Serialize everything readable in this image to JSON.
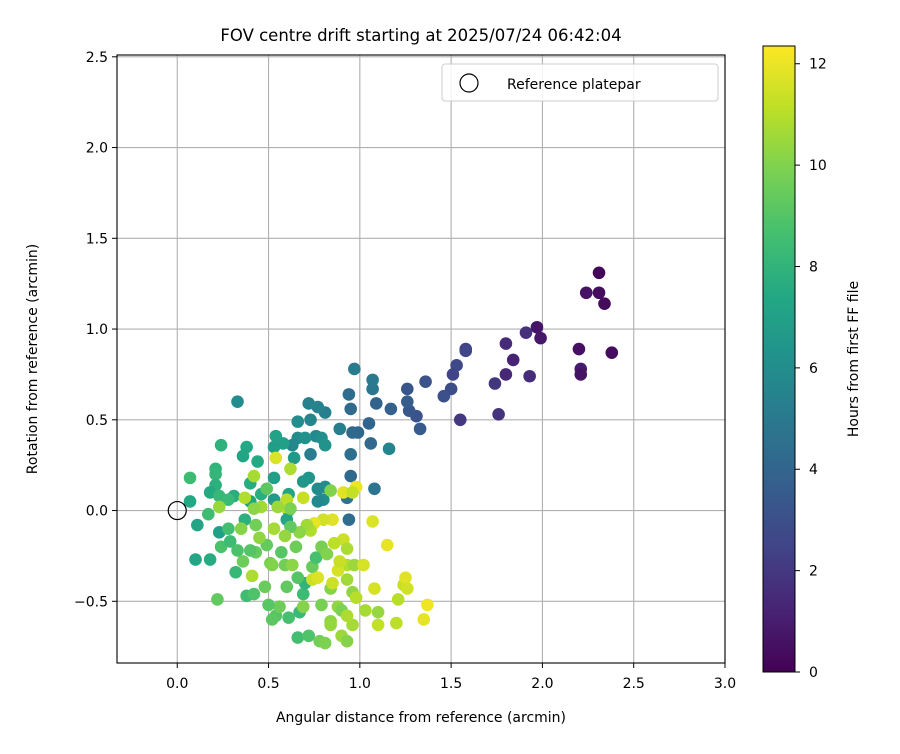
{
  "chart_data": {
    "type": "scatter",
    "title": "FOV centre drift starting at 2025/07/24 06:42:04",
    "xlabel": "Angular distance from reference (arcmin)",
    "ylabel": "Rotation from reference (arcmin)",
    "xlim": [
      -0.33,
      3.0
    ],
    "ylim": [
      -0.84,
      2.51
    ],
    "xticks": [
      0.0,
      0.5,
      1.0,
      1.5,
      2.0,
      2.5,
      3.0
    ],
    "xtick_labels": [
      "0.0",
      "0.5",
      "1.0",
      "1.5",
      "2.0",
      "2.5",
      "3.0"
    ],
    "yticks": [
      -0.5,
      0.0,
      0.5,
      1.0,
      1.5,
      2.0,
      2.5
    ],
    "ytick_labels": [
      "−0.5",
      "0.0",
      "0.5",
      "1.0",
      "1.5",
      "2.0",
      "2.5"
    ],
    "grid": true,
    "legend": {
      "placement": "top-right",
      "entries": [
        "Reference platepar"
      ]
    },
    "reference_point": {
      "x": 0.0,
      "y": 0.0
    },
    "colorbar": {
      "label": "Hours from first FF file",
      "colormap": "viridis",
      "range": [
        0,
        12.35
      ],
      "ticks": [
        0,
        2,
        4,
        6,
        8,
        10,
        12
      ],
      "tick_labels": [
        "0",
        "2",
        "4",
        "6",
        "8",
        "10",
        "12"
      ]
    },
    "points": [
      {
        "x": 2.31,
        "y": 1.31,
        "c": 0.2
      },
      {
        "x": 2.24,
        "y": 1.2,
        "c": 0.6
      },
      {
        "x": 2.31,
        "y": 1.2,
        "c": 0.4
      },
      {
        "x": 2.34,
        "y": 1.14,
        "c": 0.3
      },
      {
        "x": 1.97,
        "y": 1.01,
        "c": 0.7
      },
      {
        "x": 1.99,
        "y": 0.95,
        "c": 0.8
      },
      {
        "x": 2.2,
        "y": 0.89,
        "c": 0.5
      },
      {
        "x": 2.38,
        "y": 0.87,
        "c": 0.4
      },
      {
        "x": 2.21,
        "y": 0.78,
        "c": 0.9
      },
      {
        "x": 2.21,
        "y": 0.75,
        "c": 0.6
      },
      {
        "x": 1.84,
        "y": 0.83,
        "c": 1.2
      },
      {
        "x": 1.8,
        "y": 0.92,
        "c": 1.5
      },
      {
        "x": 1.91,
        "y": 0.98,
        "c": 1.7
      },
      {
        "x": 1.74,
        "y": 0.7,
        "c": 1.9
      },
      {
        "x": 1.8,
        "y": 0.75,
        "c": 1.4
      },
      {
        "x": 1.93,
        "y": 0.74,
        "c": 1.6
      },
      {
        "x": 1.76,
        "y": 0.53,
        "c": 1.8
      },
      {
        "x": 1.55,
        "y": 0.5,
        "c": 2.0
      },
      {
        "x": 1.58,
        "y": 0.89,
        "c": 2.3
      },
      {
        "x": 1.58,
        "y": 0.88,
        "c": 2.6
      },
      {
        "x": 1.53,
        "y": 0.8,
        "c": 2.7
      },
      {
        "x": 1.51,
        "y": 0.75,
        "c": 2.5
      },
      {
        "x": 1.5,
        "y": 0.67,
        "c": 2.9
      },
      {
        "x": 1.46,
        "y": 0.63,
        "c": 3.0
      },
      {
        "x": 1.36,
        "y": 0.71,
        "c": 3.1
      },
      {
        "x": 1.26,
        "y": 0.67,
        "c": 3.3
      },
      {
        "x": 1.31,
        "y": 0.52,
        "c": 3.2
      },
      {
        "x": 1.27,
        "y": 0.55,
        "c": 3.4
      },
      {
        "x": 1.33,
        "y": 0.45,
        "c": 3.5
      },
      {
        "x": 1.26,
        "y": 0.6,
        "c": 3.6
      },
      {
        "x": 1.17,
        "y": 0.56,
        "c": 3.8
      },
      {
        "x": 1.09,
        "y": 0.59,
        "c": 3.9
      },
      {
        "x": 1.05,
        "y": 0.48,
        "c": 4.0
      },
      {
        "x": 0.99,
        "y": 0.43,
        "c": 4.1
      },
      {
        "x": 0.96,
        "y": 0.43,
        "c": 4.2
      },
      {
        "x": 0.95,
        "y": 0.56,
        "c": 4.3
      },
      {
        "x": 0.94,
        "y": 0.64,
        "c": 4.4
      },
      {
        "x": 1.06,
        "y": 0.37,
        "c": 4.3
      },
      {
        "x": 0.95,
        "y": 0.31,
        "c": 4.5
      },
      {
        "x": 0.95,
        "y": 0.19,
        "c": 4.2
      },
      {
        "x": 0.93,
        "y": 0.07,
        "c": 4.7
      },
      {
        "x": 0.94,
        "y": -0.05,
        "c": 4.4
      },
      {
        "x": 1.08,
        "y": 0.12,
        "c": 4.8
      },
      {
        "x": 1.07,
        "y": 0.67,
        "c": 4.9
      },
      {
        "x": 1.07,
        "y": 0.72,
        "c": 5.0
      },
      {
        "x": 0.97,
        "y": 0.78,
        "c": 5.1
      },
      {
        "x": 0.89,
        "y": 0.45,
        "c": 5.3
      },
      {
        "x": 1.16,
        "y": 0.34,
        "c": 5.6
      },
      {
        "x": 0.81,
        "y": 0.54,
        "c": 5.3
      },
      {
        "x": 0.72,
        "y": 0.59,
        "c": 5.4
      },
      {
        "x": 0.77,
        "y": 0.57,
        "c": 5.5
      },
      {
        "x": 0.73,
        "y": 0.5,
        "c": 5.6
      },
      {
        "x": 0.66,
        "y": 0.49,
        "c": 6.0
      },
      {
        "x": 0.66,
        "y": 0.4,
        "c": 5.9
      },
      {
        "x": 0.63,
        "y": 0.36,
        "c": 5.7
      },
      {
        "x": 0.76,
        "y": 0.41,
        "c": 5.8
      },
      {
        "x": 0.79,
        "y": 0.4,
        "c": 6.1
      },
      {
        "x": 0.81,
        "y": 0.36,
        "c": 6.3
      },
      {
        "x": 0.81,
        "y": 0.13,
        "c": 6.0
      },
      {
        "x": 0.77,
        "y": 0.12,
        "c": 5.9
      },
      {
        "x": 0.8,
        "y": 0.06,
        "c": 6.0
      },
      {
        "x": 0.77,
        "y": 0.05,
        "c": 5.8
      },
      {
        "x": 0.73,
        "y": 0.31,
        "c": 5.2
      },
      {
        "x": 0.72,
        "y": 0.18,
        "c": 6.4
      },
      {
        "x": 0.69,
        "y": 0.16,
        "c": 6.5
      },
      {
        "x": 0.64,
        "y": 0.29,
        "c": 6.6
      },
      {
        "x": 0.7,
        "y": 0.4,
        "c": 6.2
      },
      {
        "x": 0.58,
        "y": 0.37,
        "c": 7.0
      },
      {
        "x": 0.54,
        "y": 0.41,
        "c": 7.1
      },
      {
        "x": 0.53,
        "y": 0.35,
        "c": 6.8
      },
      {
        "x": 0.53,
        "y": 0.18,
        "c": 6.9
      },
      {
        "x": 0.53,
        "y": 0.06,
        "c": 6.7
      },
      {
        "x": 0.61,
        "y": 0.09,
        "c": 7.2
      },
      {
        "x": 0.61,
        "y": 0.0,
        "c": 7.3
      },
      {
        "x": 0.6,
        "y": -0.05,
        "c": 7.2
      },
      {
        "x": 0.38,
        "y": 0.35,
        "c": 7.4
      },
      {
        "x": 0.33,
        "y": 0.6,
        "c": 6.0
      },
      {
        "x": 0.36,
        "y": 0.3,
        "c": 7.2
      },
      {
        "x": 0.44,
        "y": 0.27,
        "c": 7.5
      },
      {
        "x": 0.4,
        "y": 0.15,
        "c": 7.6
      },
      {
        "x": 0.46,
        "y": 0.09,
        "c": 7.7
      },
      {
        "x": 0.4,
        "y": 0.05,
        "c": 7.1
      },
      {
        "x": 0.37,
        "y": -0.05,
        "c": 7.8
      },
      {
        "x": 0.31,
        "y": 0.08,
        "c": 7.7
      },
      {
        "x": 0.24,
        "y": 0.36,
        "c": 7.9
      },
      {
        "x": 0.21,
        "y": 0.23,
        "c": 8.0
      },
      {
        "x": 0.21,
        "y": 0.2,
        "c": 8.1
      },
      {
        "x": 0.21,
        "y": 0.14,
        "c": 7.8
      },
      {
        "x": 0.18,
        "y": 0.1,
        "c": 7.5
      },
      {
        "x": 0.23,
        "y": 0.08,
        "c": 8.2
      },
      {
        "x": 0.28,
        "y": 0.06,
        "c": 8.3
      },
      {
        "x": 0.07,
        "y": 0.18,
        "c": 8.4
      },
      {
        "x": 0.07,
        "y": 0.05,
        "c": 7.4
      },
      {
        "x": 0.11,
        "y": -0.08,
        "c": 7.2
      },
      {
        "x": 0.17,
        "y": -0.02,
        "c": 8.5
      },
      {
        "x": 0.23,
        "y": -0.12,
        "c": 7.0
      },
      {
        "x": 0.1,
        "y": -0.27,
        "c": 7.3
      },
      {
        "x": 0.18,
        "y": -0.27,
        "c": 7.6
      },
      {
        "x": 0.28,
        "y": -0.1,
        "c": 8.6
      },
      {
        "x": 0.24,
        "y": -0.2,
        "c": 8.8
      },
      {
        "x": 0.29,
        "y": -0.17,
        "c": 8.4
      },
      {
        "x": 0.32,
        "y": -0.34,
        "c": 8.2
      },
      {
        "x": 0.38,
        "y": -0.47,
        "c": 8.5
      },
      {
        "x": 0.22,
        "y": -0.49,
        "c": 9.3
      },
      {
        "x": 0.42,
        "y": -0.46,
        "c": 8.9
      },
      {
        "x": 0.43,
        "y": -0.23,
        "c": 9.4
      },
      {
        "x": 0.48,
        "y": -0.42,
        "c": 9.5
      },
      {
        "x": 0.51,
        "y": -0.29,
        "c": 9.8
      },
      {
        "x": 0.54,
        "y": -0.58,
        "c": 9.0
      },
      {
        "x": 0.52,
        "y": -0.6,
        "c": 9.2
      },
      {
        "x": 0.56,
        "y": -0.53,
        "c": 9.6
      },
      {
        "x": 0.61,
        "y": -0.59,
        "c": 8.7
      },
      {
        "x": 0.66,
        "y": -0.7,
        "c": 8.6
      },
      {
        "x": 0.72,
        "y": -0.69,
        "c": 8.9
      },
      {
        "x": 0.78,
        "y": -0.72,
        "c": 9.7
      },
      {
        "x": 0.81,
        "y": -0.73,
        "c": 9.9
      },
      {
        "x": 0.67,
        "y": -0.56,
        "c": 8.3
      },
      {
        "x": 0.69,
        "y": -0.46,
        "c": 8.4
      },
      {
        "x": 0.7,
        "y": -0.4,
        "c": 8.0
      },
      {
        "x": 0.66,
        "y": -0.37,
        "c": 9.0
      },
      {
        "x": 0.74,
        "y": -0.31,
        "c": 9.5
      },
      {
        "x": 0.76,
        "y": -0.26,
        "c": 8.7
      },
      {
        "x": 0.79,
        "y": -0.2,
        "c": 9.8
      },
      {
        "x": 0.82,
        "y": -0.24,
        "c": 10.0
      },
      {
        "x": 0.84,
        "y": -0.43,
        "c": 10.1
      },
      {
        "x": 0.88,
        "y": -0.53,
        "c": 10.3
      },
      {
        "x": 0.9,
        "y": -0.55,
        "c": 9.9
      },
      {
        "x": 0.84,
        "y": -0.61,
        "c": 10.2
      },
      {
        "x": 0.84,
        "y": -0.63,
        "c": 10.4
      },
      {
        "x": 0.9,
        "y": -0.69,
        "c": 10.5
      },
      {
        "x": 0.93,
        "y": -0.72,
        "c": 10.1
      },
      {
        "x": 0.96,
        "y": -0.63,
        "c": 10.7
      },
      {
        "x": 0.93,
        "y": -0.58,
        "c": 10.8
      },
      {
        "x": 0.96,
        "y": -0.45,
        "c": 10.3
      },
      {
        "x": 0.93,
        "y": -0.38,
        "c": 10.6
      },
      {
        "x": 0.93,
        "y": -0.3,
        "c": 10.9
      },
      {
        "x": 0.97,
        "y": -0.3,
        "c": 10.5
      },
      {
        "x": 0.98,
        "y": -0.48,
        "c": 11.0
      },
      {
        "x": 1.03,
        "y": -0.55,
        "c": 10.7
      },
      {
        "x": 1.1,
        "y": -0.56,
        "c": 10.4
      },
      {
        "x": 1.1,
        "y": -0.63,
        "c": 11.2
      },
      {
        "x": 1.2,
        "y": -0.62,
        "c": 11.1
      },
      {
        "x": 1.21,
        "y": -0.49,
        "c": 11.0
      },
      {
        "x": 1.24,
        "y": -0.41,
        "c": 11.3
      },
      {
        "x": 1.25,
        "y": -0.37,
        "c": 11.8
      },
      {
        "x": 1.26,
        "y": -0.43,
        "c": 11.5
      },
      {
        "x": 1.35,
        "y": -0.6,
        "c": 11.9
      },
      {
        "x": 1.37,
        "y": -0.52,
        "c": 12.1
      },
      {
        "x": 1.08,
        "y": -0.43,
        "c": 11.6
      },
      {
        "x": 1.15,
        "y": -0.19,
        "c": 11.9
      },
      {
        "x": 1.07,
        "y": -0.06,
        "c": 11.7
      },
      {
        "x": 0.98,
        "y": 0.13,
        "c": 12.0
      },
      {
        "x": 0.91,
        "y": 0.1,
        "c": 11.8
      },
      {
        "x": 0.96,
        "y": 0.1,
        "c": 11.2
      },
      {
        "x": 0.91,
        "y": -0.16,
        "c": 11.4
      },
      {
        "x": 0.93,
        "y": -0.21,
        "c": 10.8
      },
      {
        "x": 0.86,
        "y": -0.18,
        "c": 11.1
      },
      {
        "x": 0.88,
        "y": -0.33,
        "c": 11.6
      },
      {
        "x": 0.89,
        "y": -0.28,
        "c": 11.3
      },
      {
        "x": 0.85,
        "y": -0.05,
        "c": 11.8
      },
      {
        "x": 0.8,
        "y": -0.05,
        "c": 11.5
      },
      {
        "x": 0.75,
        "y": -0.07,
        "c": 11.9
      },
      {
        "x": 0.74,
        "y": -0.38,
        "c": 11.4
      },
      {
        "x": 0.77,
        "y": -0.37,
        "c": 11.7
      },
      {
        "x": 0.73,
        "y": -0.11,
        "c": 10.9
      },
      {
        "x": 0.71,
        "y": -0.08,
        "c": 10.6
      },
      {
        "x": 0.67,
        "y": -0.12,
        "c": 10.2
      },
      {
        "x": 0.65,
        "y": -0.2,
        "c": 9.6
      },
      {
        "x": 0.62,
        "y": -0.09,
        "c": 9.3
      },
      {
        "x": 0.59,
        "y": -0.14,
        "c": 10.4
      },
      {
        "x": 0.59,
        "y": -0.3,
        "c": 9.7
      },
      {
        "x": 0.57,
        "y": -0.23,
        "c": 9.1
      },
      {
        "x": 0.52,
        "y": -0.3,
        "c": 10.0
      },
      {
        "x": 0.49,
        "y": -0.19,
        "c": 9.4
      },
      {
        "x": 0.45,
        "y": -0.15,
        "c": 10.3
      },
      {
        "x": 0.43,
        "y": -0.08,
        "c": 9.7
      },
      {
        "x": 0.46,
        "y": 0.02,
        "c": 10.6
      },
      {
        "x": 0.42,
        "y": 0.01,
        "c": 10.2
      },
      {
        "x": 0.42,
        "y": 0.19,
        "c": 10.7
      },
      {
        "x": 0.37,
        "y": 0.07,
        "c": 10.9
      },
      {
        "x": 0.35,
        "y": -0.1,
        "c": 10.1
      },
      {
        "x": 0.36,
        "y": -0.28,
        "c": 9.6
      },
      {
        "x": 0.41,
        "y": -0.36,
        "c": 10.8
      },
      {
        "x": 0.4,
        "y": -0.22,
        "c": 9.0
      },
      {
        "x": 0.33,
        "y": -0.22,
        "c": 8.8
      },
      {
        "x": 0.23,
        "y": 0.02,
        "c": 10.4
      },
      {
        "x": 0.54,
        "y": 0.29,
        "c": 11.7
      },
      {
        "x": 0.62,
        "y": 0.23,
        "c": 10.8
      },
      {
        "x": 0.69,
        "y": 0.07,
        "c": 11.3
      },
      {
        "x": 0.6,
        "y": 0.06,
        "c": 11.0
      },
      {
        "x": 0.59,
        "y": 0.02,
        "c": 11.1
      },
      {
        "x": 0.55,
        "y": 0.02,
        "c": 10.5
      },
      {
        "x": 0.53,
        "y": -0.1,
        "c": 10.7
      },
      {
        "x": 0.63,
        "y": -0.3,
        "c": 10.2
      },
      {
        "x": 0.84,
        "y": 0.11,
        "c": 10.0
      },
      {
        "x": 0.85,
        "y": -0.4,
        "c": 11.4
      },
      {
        "x": 1.02,
        "y": -0.3,
        "c": 11.6
      },
      {
        "x": 0.6,
        "y": -0.42,
        "c": 9.3
      },
      {
        "x": 0.5,
        "y": -0.52,
        "c": 9.1
      },
      {
        "x": 0.69,
        "y": -0.53,
        "c": 10.1
      },
      {
        "x": 0.79,
        "y": -0.52,
        "c": 9.8
      },
      {
        "x": 0.62,
        "y": 0.01,
        "c": 9.9
      },
      {
        "x": 0.49,
        "y": 0.12,
        "c": 9.2
      }
    ]
  }
}
